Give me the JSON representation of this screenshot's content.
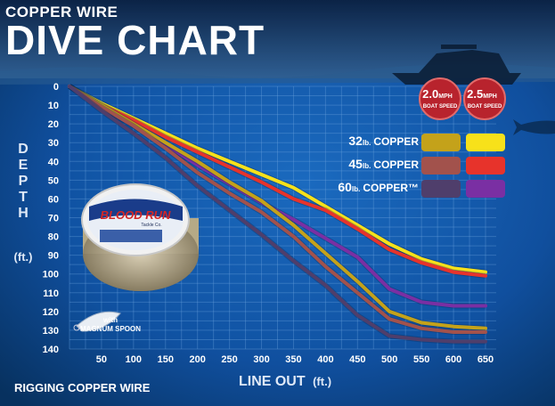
{
  "header": {
    "line1": "COPPER WIRE",
    "line2": "DIVE CHART"
  },
  "caption": "RIGGING COPPER WIRE",
  "product": {
    "brand": "BLOOD RUN",
    "sub": "Tackle Co.",
    "spoon_label": "with",
    "spoon_name": "MAGNUM SPOON"
  },
  "speed_badges": [
    {
      "speed": "2.0",
      "unit": "MPH",
      "label": "BOAT SPEED"
    },
    {
      "speed": "2.5",
      "unit": "MPH",
      "label": "BOAT SPEED"
    }
  ],
  "colors": {
    "c32_20": "#c4a21a",
    "c32_25": "#f7e11a",
    "c45_20": "#a2524c",
    "c45_25": "#e7332b",
    "c60_20": "#4f3e6b",
    "c60_25": "#7a2fa3"
  },
  "chart_data": {
    "type": "line",
    "xlabel": "LINE OUT",
    "xlabel_unit": "(ft.)",
    "ylabel": "DEPTH",
    "ylabel_unit": "(ft.)",
    "xlim": [
      0,
      650
    ],
    "ylim": [
      0,
      140
    ],
    "x_ticks": [
      50,
      100,
      150,
      200,
      250,
      300,
      350,
      400,
      450,
      500,
      550,
      600,
      650
    ],
    "y_ticks": [
      0,
      10,
      20,
      30,
      40,
      50,
      60,
      70,
      80,
      90,
      100,
      110,
      120,
      130,
      140
    ],
    "grid": true,
    "legend": [
      {
        "label": "32",
        "unit": "lb.",
        "suffix": "COPPER",
        "colors": [
          "#c4a21a",
          "#f7e11a"
        ]
      },
      {
        "label": "45",
        "unit": "lb.",
        "suffix": "COPPER",
        "colors": [
          "#a2524c",
          "#e7332b"
        ]
      },
      {
        "label": "60",
        "unit": "lb.",
        "suffix": "COPPER™",
        "colors": [
          "#4f3e6b",
          "#7a2fa3"
        ]
      }
    ],
    "series": [
      {
        "color": "#f7e11a",
        "x": [
          0,
          50,
          100,
          150,
          200,
          250,
          300,
          350,
          400,
          450,
          500,
          550,
          600,
          650
        ],
        "y": [
          0,
          9,
          17,
          25,
          33,
          40,
          47,
          54,
          64,
          74,
          84,
          92,
          97,
          99
        ]
      },
      {
        "color": "#e7332b",
        "x": [
          0,
          50,
          100,
          150,
          200,
          250,
          300,
          350,
          400,
          450,
          500,
          550,
          600,
          650
        ],
        "y": [
          0,
          10,
          18,
          27,
          35,
          43,
          51,
          60,
          66,
          76,
          87,
          94,
          99,
          101
        ]
      },
      {
        "color": "#7a2fa3",
        "x": [
          0,
          50,
          100,
          150,
          200,
          250,
          300,
          350,
          400,
          450,
          500,
          550,
          600,
          650
        ],
        "y": [
          0,
          11,
          21,
          31,
          42,
          52,
          62,
          71,
          81,
          91,
          108,
          115,
          117,
          117
        ]
      },
      {
        "color": "#c4a21a",
        "x": [
          0,
          50,
          100,
          150,
          200,
          250,
          300,
          350,
          400,
          450,
          500,
          550,
          600,
          650
        ],
        "y": [
          0,
          10,
          20,
          30,
          40,
          51,
          61,
          74,
          89,
          104,
          120,
          126,
          128,
          129
        ]
      },
      {
        "color": "#a2524c",
        "x": [
          0,
          50,
          100,
          150,
          200,
          250,
          300,
          350,
          400,
          450,
          500,
          550,
          600,
          650
        ],
        "y": [
          0,
          11,
          21,
          33,
          46,
          57,
          67,
          80,
          96,
          110,
          124,
          129,
          131,
          131
        ]
      },
      {
        "color": "#4f3e6b",
        "x": [
          0,
          50,
          100,
          150,
          200,
          250,
          300,
          350,
          400,
          450,
          500,
          550,
          600,
          650
        ],
        "y": [
          0,
          13,
          25,
          38,
          53,
          66,
          79,
          93,
          106,
          122,
          133,
          135,
          136,
          136
        ]
      }
    ]
  }
}
